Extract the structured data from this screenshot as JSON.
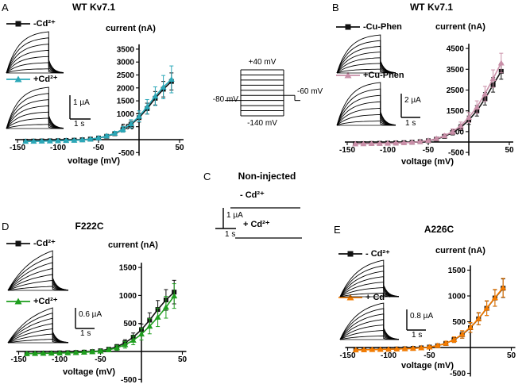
{
  "figure": {
    "panel_letters": {
      "A": "A",
      "B": "B",
      "C": "C",
      "D": "D",
      "E": "E"
    },
    "protocol": {
      "top_step": "+40 mV",
      "holding": "-80 mV",
      "tail_step": "-60 mV",
      "bottom_step": "-140 mV"
    },
    "scale_bars": {
      "A": {
        "v": "1 µA",
        "h": "1 s"
      },
      "B": {
        "v": "2 µA",
        "h": "1 s"
      },
      "C": {
        "v": "1 µA",
        "h": "1 s"
      },
      "D": {
        "v": "0.6 µA",
        "h": "1 s"
      },
      "E": {
        "v": "0.8 µA",
        "h": "1 s"
      }
    }
  },
  "chart_data": [
    {
      "id": "A",
      "type": "line",
      "title": "WT Kv7.1",
      "xlabel": "voltage (mV)",
      "ylabel": "current (nA)",
      "xlim": [
        -150,
        50
      ],
      "ylim": [
        -500,
        3500
      ],
      "x_ticks": [
        -150,
        -100,
        -50,
        50
      ],
      "y_ticks": [
        -500,
        500,
        1000,
        1500,
        2000,
        2500,
        3000,
        3500
      ],
      "legend_position": "left",
      "x": [
        -140,
        -130,
        -120,
        -110,
        -100,
        -90,
        -80,
        -70,
        -60,
        -50,
        -40,
        -30,
        -20,
        -10,
        0,
        10,
        20,
        30,
        40
      ],
      "series": [
        {
          "name": "-Cd²⁺",
          "color": "#111111",
          "marker": "square",
          "values": [
            -60,
            -55,
            -50,
            -45,
            -40,
            -30,
            -20,
            -5,
            20,
            60,
            130,
            230,
            380,
            580,
            850,
            1200,
            1600,
            1950,
            2250
          ],
          "errors": [
            25,
            25,
            25,
            25,
            25,
            25,
            25,
            25,
            30,
            35,
            45,
            60,
            90,
            130,
            170,
            210,
            260,
            300,
            330
          ]
        },
        {
          "name": "+Cd²⁺",
          "color": "#2ba8b8",
          "marker": "triangle",
          "values": [
            -70,
            -65,
            -58,
            -52,
            -45,
            -35,
            -25,
            -8,
            20,
            65,
            140,
            245,
            400,
            610,
            900,
            1270,
            1680,
            2030,
            2330
          ],
          "errors": [
            30,
            30,
            30,
            30,
            30,
            30,
            30,
            30,
            35,
            45,
            55,
            75,
            110,
            160,
            210,
            280,
            360,
            450,
            520
          ]
        }
      ]
    },
    {
      "id": "B",
      "type": "line",
      "title": "WT Kv7.1",
      "xlabel": "voltage (mV)",
      "ylabel": "current (nA)",
      "xlim": [
        -150,
        50
      ],
      "ylim": [
        -500,
        4500
      ],
      "x_ticks": [
        -150,
        -100,
        -50,
        50
      ],
      "y_ticks": [
        -500,
        500,
        1500,
        2500,
        3500,
        4500
      ],
      "legend_position": "left",
      "x": [
        -140,
        -130,
        -120,
        -110,
        -100,
        -90,
        -80,
        -70,
        -60,
        -50,
        -40,
        -30,
        -20,
        -10,
        0,
        10,
        20,
        30,
        40
      ],
      "series": [
        {
          "name": "-Cu-Phen",
          "color": "#111111",
          "marker": "square",
          "values": [
            -80,
            -75,
            -70,
            -62,
            -55,
            -45,
            -32,
            -15,
            15,
            60,
            140,
            270,
            450,
            700,
            1050,
            1500,
            2080,
            2750,
            3400
          ],
          "errors": [
            30,
            30,
            30,
            30,
            30,
            30,
            30,
            30,
            35,
            45,
            60,
            80,
            110,
            150,
            200,
            250,
            300,
            350,
            380
          ]
        },
        {
          "name": "+Cu-Phen",
          "color": "#c98fa8",
          "marker": "triangle",
          "values": [
            -90,
            -85,
            -78,
            -70,
            -60,
            -50,
            -36,
            -16,
            18,
            70,
            160,
            300,
            500,
            780,
            1180,
            1680,
            2320,
            3050,
            3800
          ],
          "errors": [
            35,
            35,
            35,
            35,
            35,
            35,
            35,
            35,
            40,
            50,
            70,
            95,
            130,
            180,
            240,
            300,
            360,
            420,
            470
          ]
        }
      ]
    },
    {
      "id": "C",
      "type": "line",
      "title": "Non-injected",
      "note": "example traces only, flat current ≈ 0 nA",
      "series": [
        {
          "name": "- Cd²⁺",
          "note": "flat trace ≈ 0"
        },
        {
          "name": "+ Cd²⁺",
          "note": "flat trace ≈ 0"
        }
      ]
    },
    {
      "id": "D",
      "type": "line",
      "title": "F222C",
      "xlabel": "voltage (mV)",
      "ylabel": "current (nA)",
      "xlim": [
        -150,
        50
      ],
      "ylim": [
        -500,
        1500
      ],
      "x_ticks": [
        -150,
        -100,
        -50,
        50
      ],
      "y_ticks": [
        -500,
        500,
        1000,
        1500
      ],
      "legend_position": "left",
      "x": [
        -140,
        -130,
        -120,
        -110,
        -100,
        -90,
        -80,
        -70,
        -60,
        -50,
        -40,
        -30,
        -20,
        -10,
        0,
        10,
        20,
        30,
        40
      ],
      "series": [
        {
          "name": "-Cd²⁺",
          "color": "#111111",
          "marker": "square",
          "values": [
            -35,
            -32,
            -30,
            -28,
            -25,
            -22,
            -18,
            -12,
            -3,
            12,
            40,
            85,
            155,
            255,
            390,
            560,
            750,
            920,
            1060
          ],
          "errors": [
            15,
            15,
            15,
            15,
            15,
            15,
            15,
            15,
            18,
            22,
            30,
            40,
            55,
            75,
            100,
            130,
            160,
            185,
            210
          ]
        },
        {
          "name": "+Cd²⁺",
          "color": "#1e9e1e",
          "marker": "triangle",
          "values": [
            -40,
            -37,
            -34,
            -31,
            -28,
            -25,
            -21,
            -15,
            -6,
            6,
            28,
            65,
            120,
            200,
            310,
            450,
            610,
            790,
            990
          ],
          "errors": [
            18,
            18,
            18,
            18,
            18,
            18,
            18,
            18,
            20,
            25,
            32,
            45,
            60,
            80,
            105,
            135,
            165,
            195,
            220
          ]
        }
      ]
    },
    {
      "id": "E",
      "type": "line",
      "title": "A226C",
      "xlabel": "voltage (mV)",
      "ylabel": "current (nA)",
      "xlim": [
        -150,
        50
      ],
      "ylim": [
        -500,
        1500
      ],
      "x_ticks": [
        -150,
        -100,
        -50,
        50
      ],
      "y_ticks": [
        -500,
        500,
        1000,
        1500
      ],
      "legend_position": "left",
      "x": [
        -140,
        -130,
        -120,
        -110,
        -100,
        -90,
        -80,
        -70,
        -60,
        -50,
        -40,
        -30,
        -20,
        -10,
        0,
        10,
        20,
        30,
        40
      ],
      "series": [
        {
          "name": "- Cd²⁺",
          "color": "#111111",
          "marker": "square",
          "values": [
            -45,
            -42,
            -39,
            -36,
            -33,
            -29,
            -24,
            -17,
            -7,
            8,
            35,
            80,
            150,
            250,
            385,
            555,
            760,
            960,
            1150
          ],
          "errors": [
            15,
            15,
            15,
            15,
            15,
            15,
            15,
            15,
            18,
            22,
            28,
            38,
            52,
            70,
            92,
            115,
            140,
            160,
            180
          ]
        },
        {
          "name": "+ Cd²⁺",
          "color": "#f57c00",
          "marker": "triangle",
          "values": [
            -48,
            -45,
            -41,
            -38,
            -34,
            -30,
            -25,
            -18,
            -8,
            8,
            36,
            82,
            153,
            255,
            390,
            560,
            765,
            965,
            1160
          ],
          "errors": [
            16,
            16,
            16,
            16,
            16,
            16,
            16,
            16,
            19,
            23,
            30,
            40,
            54,
            72,
            95,
            118,
            142,
            162,
            182
          ]
        }
      ]
    }
  ]
}
